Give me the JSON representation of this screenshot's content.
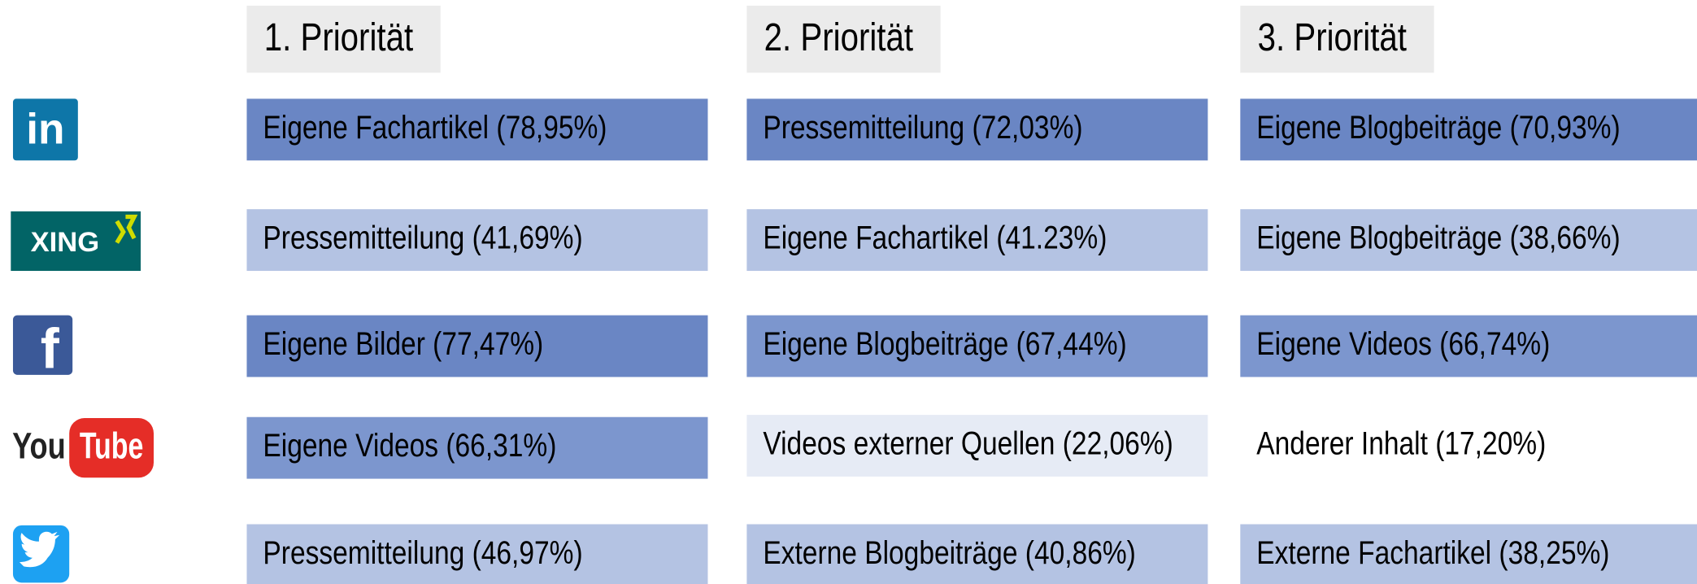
{
  "headers": [
    "1. Priorität",
    "2. Priorität",
    "3. Priorität"
  ],
  "rows": [
    {
      "icon_text": [
        "in"
      ],
      "cells": [
        {
          "text": "Eigene Fachartikel (78,95%)",
          "color": "#6a86c4"
        },
        {
          "text": "Pressemitteilung (72,03%)",
          "color": "#6a86c4"
        },
        {
          "text": "Eigene Blogbeiträge (70,93%)",
          "color": "#6a86c4"
        }
      ]
    },
    {
      "icon_text": [
        "XING"
      ],
      "cells": [
        {
          "text": "Pressemitteilung (41,69%)",
          "color": "#b4c3e3"
        },
        {
          "text": "Eigene Fachartikel (41.23%)",
          "color": "#b4c3e3"
        },
        {
          "text": "Eigene Blogbeiträge (38,66%)",
          "color": "#b4c3e3"
        }
      ]
    },
    {
      "icon_text": [
        "f"
      ],
      "cells": [
        {
          "text": "Eigene Bilder (77,47%)",
          "color": "#6a86c4"
        },
        {
          "text": "Eigene Blogbeiträge (67,44%)",
          "color": "#7c96ce"
        },
        {
          "text": "Eigene Videos (66,74%)",
          "color": "#7c96ce"
        }
      ]
    },
    {
      "icon_text": [
        "You",
        "Tube"
      ],
      "cells": [
        {
          "text": "Eigene Videos (66,31%)",
          "color": "#7c96ce"
        },
        {
          "text": "Videos externer Quellen (22,06%)",
          "color": "#e6ebf5"
        },
        {
          "text": "Anderer Inhalt (17,20%)",
          "color": "#ffffff"
        }
      ]
    },
    {
      "cells": [
        {
          "text": "Pressemitteilung (46,97%)",
          "color": "#b4c3e3"
        },
        {
          "text": "Externe Blogbeiträge (40,86%)",
          "color": "#b4c3e3"
        },
        {
          "text": "Externe Fachartikel (38,25%)",
          "color": "#b4c3e3"
        }
      ]
    }
  ]
}
